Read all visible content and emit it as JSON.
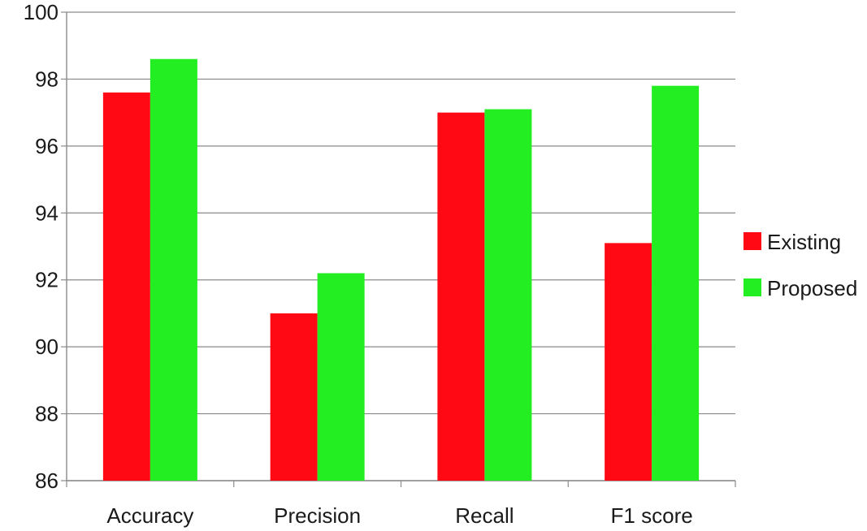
{
  "chart_data": {
    "type": "bar",
    "title": "",
    "xlabel": "",
    "ylabel": "",
    "categories": [
      "Accuracy",
      "Precision",
      "Recall",
      "F1 score"
    ],
    "series": [
      {
        "name": "Existing",
        "color": "#ff0a14",
        "values": [
          97.6,
          91.0,
          97.0,
          93.1
        ]
      },
      {
        "name": "Proposed",
        "color": "#22ee22",
        "values": [
          98.6,
          92.2,
          97.1,
          97.8
        ]
      }
    ],
    "ylim": [
      86,
      100
    ],
    "yticks": [
      86,
      88,
      90,
      92,
      94,
      96,
      98,
      100
    ],
    "grid": true,
    "legend_position": "right"
  }
}
